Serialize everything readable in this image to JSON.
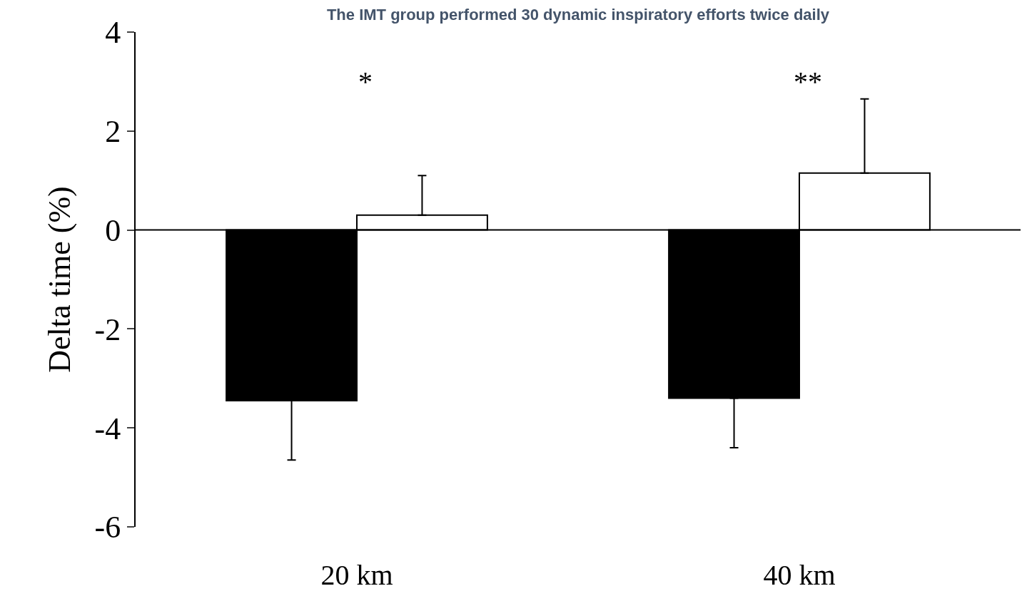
{
  "chart_data": {
    "type": "bar",
    "title": "The IMT group performed 30 dynamic inspiratory efforts twice daily",
    "ylabel": "Delta time (%)",
    "categories": [
      "20 km",
      "40 km"
    ],
    "series": [
      {
        "color": "#000000",
        "values": [
          -3.45,
          -3.4
        ],
        "errors": [
          [
            -4.65,
            -3.45
          ],
          [
            -4.4,
            -3.4
          ]
        ]
      },
      {
        "color": "#ffffff",
        "values": [
          0.3,
          1.15
        ],
        "errors": [
          [
            0.3,
            1.1
          ],
          [
            1.15,
            2.65
          ]
        ]
      }
    ],
    "ylim": [
      -6,
      4
    ],
    "yticks": [
      -6,
      -4,
      -2,
      0,
      2,
      4
    ],
    "annotations": [
      "*",
      "**"
    ]
  }
}
